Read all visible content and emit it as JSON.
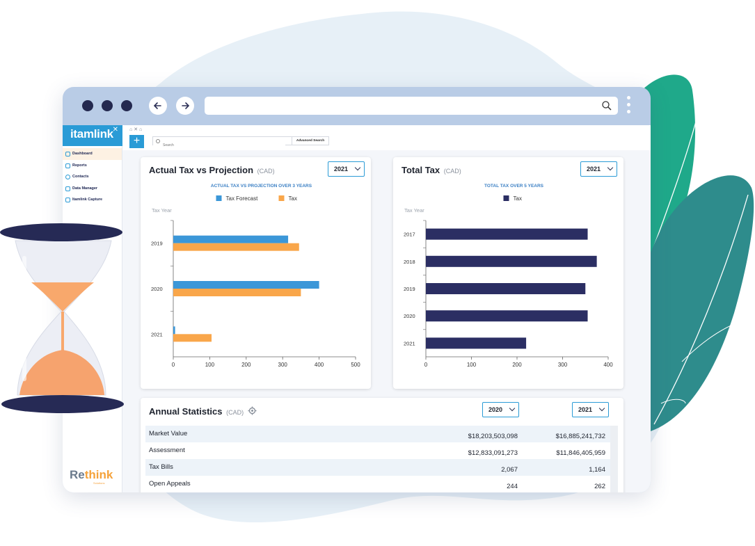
{
  "sidebar": {
    "logo": "itamlink",
    "items": [
      {
        "label": "Dashboard",
        "active": true
      },
      {
        "label": "Reports",
        "active": false
      },
      {
        "label": "Contacts",
        "active": false
      },
      {
        "label": "Data Manager",
        "active": false
      },
      {
        "label": "Itamlink Capture",
        "active": false
      }
    ],
    "footer_brand_a": "Re",
    "footer_brand_b": "think",
    "footer_sub": "Solutions"
  },
  "toolbar": {
    "add_label": "+",
    "search_placeholder": "Search",
    "advanced_search_label": "Advanced Search"
  },
  "actual_card": {
    "title": "Actual Tax vs Projection",
    "unit": "(CAD)",
    "year_select": "2021"
  },
  "total_card": {
    "title": "Total Tax",
    "unit": "(CAD)",
    "year_select": "2021"
  },
  "stats_card": {
    "title": "Annual Statistics",
    "unit": "(CAD)",
    "year_select_1": "2020",
    "year_select_2": "2021",
    "rows": [
      {
        "label": "Market Value",
        "v2020": "$18,203,503,098",
        "v2021": "$16,885,241,732"
      },
      {
        "label": "Assessment",
        "v2020": "$12,833,091,273",
        "v2021": "$11,846,405,959"
      },
      {
        "label": "Tax Bills",
        "v2020": "2,067",
        "v2021": "1,164"
      },
      {
        "label": "Open Appeals",
        "v2020": "244",
        "v2021": "262"
      }
    ]
  },
  "colors": {
    "accent": "#2a9bd6",
    "forecast": "#3b97d8",
    "tax": "#f9a64a",
    "total_tax": "#2b2e63",
    "window_frame": "#b9cce6",
    "leaf_green": "#1fa98a",
    "leaf_teal": "#2e8c8c"
  },
  "chart_data": [
    {
      "type": "bar",
      "orientation": "horizontal",
      "title": "ACTUAL TAX VS PROJECTION OVER 3 YEARS",
      "ylabel": "Tax Year",
      "categories": [
        "2019",
        "2020",
        "2021"
      ],
      "series": [
        {
          "name": "Tax Forecast",
          "values": [
            315,
            400,
            5
          ]
        },
        {
          "name": "Tax",
          "values": [
            345,
            350,
            105
          ]
        }
      ],
      "xlim": [
        0,
        500
      ],
      "xticks": [
        0,
        100,
        200,
        300,
        400,
        500
      ],
      "legend": "top-center",
      "grid": false
    },
    {
      "type": "bar",
      "orientation": "horizontal",
      "title": "TOTAL TAX OVER 5 YEARS",
      "ylabel": "Tax Year",
      "categories": [
        "2017",
        "2018",
        "2019",
        "2020",
        "2021"
      ],
      "series": [
        {
          "name": "Tax",
          "values": [
            355,
            375,
            350,
            355,
            220
          ]
        }
      ],
      "xlim": [
        0,
        400
      ],
      "xticks": [
        0,
        100,
        200,
        300,
        400
      ],
      "legend": "top-center",
      "grid": false
    }
  ]
}
